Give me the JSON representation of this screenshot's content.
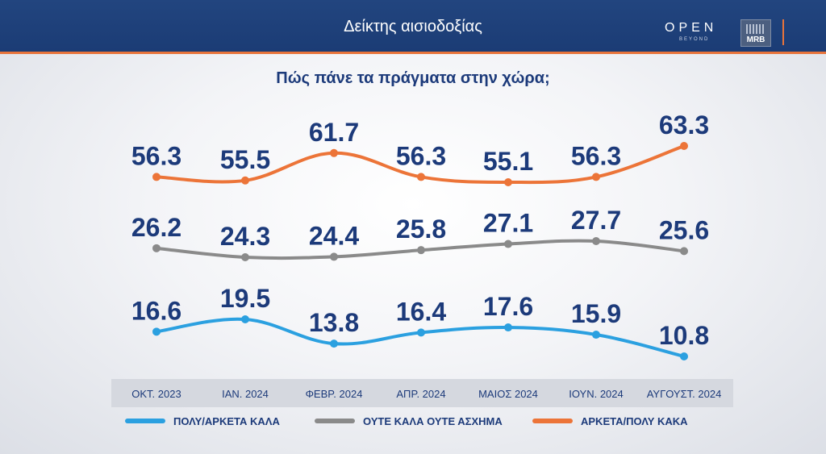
{
  "header": {
    "title": "Δείκτης αισιοδοξίας",
    "logo_open": "OPEN",
    "logo_beyond": "BEYOND",
    "logo_mrb": "MRB"
  },
  "chart_data": {
    "type": "line",
    "title": "Πώς πάνε τα πράγματα στην χώρα;",
    "categories": [
      "ΟΚΤ. 2023",
      "ΙΑΝ. 2024",
      "ΦΕΒΡ. 2024",
      "ΑΠΡ. 2024",
      "ΜΑΙΟΣ 2024",
      "ΙΟΥΝ. 2024",
      "ΑΥΓΟΥΣΤ. 2024"
    ],
    "series": [
      {
        "name": "ΑΡΚΕΤΑ/ΠΟΛΥ ΚΑΚΑ",
        "color": "#ec7438",
        "values": [
          56.3,
          55.5,
          61.7,
          56.3,
          55.1,
          56.3,
          63.3
        ]
      },
      {
        "name": "ΟΥΤΕ ΚΑΛΑ ΟΥΤΕ ΑΣΧΗΜΑ",
        "color": "#8a8a8a",
        "values": [
          26.2,
          24.3,
          24.4,
          25.8,
          27.1,
          27.7,
          25.6
        ]
      },
      {
        "name": "ΠΟΛΥ/ΑΡΚΕΤΑ ΚΑΛΑ",
        "color": "#2ba0e0",
        "values": [
          16.6,
          19.5,
          13.8,
          16.4,
          17.6,
          15.9,
          10.8
        ]
      }
    ],
    "legend_order": [
      "ΠΟΛΥ/ΑΡΚΕΤΑ ΚΑΛΑ",
      "ΟΥΤΕ ΚΑΛΑ ΟΥΤΕ ΑΣΧΗΜΑ",
      "ΑΡΚΕΤΑ/ΠΟΛΥ ΚΑΚΑ"
    ],
    "legend_placement": "bottom",
    "grid": false,
    "value_label_color": "#1c3a7a"
  }
}
